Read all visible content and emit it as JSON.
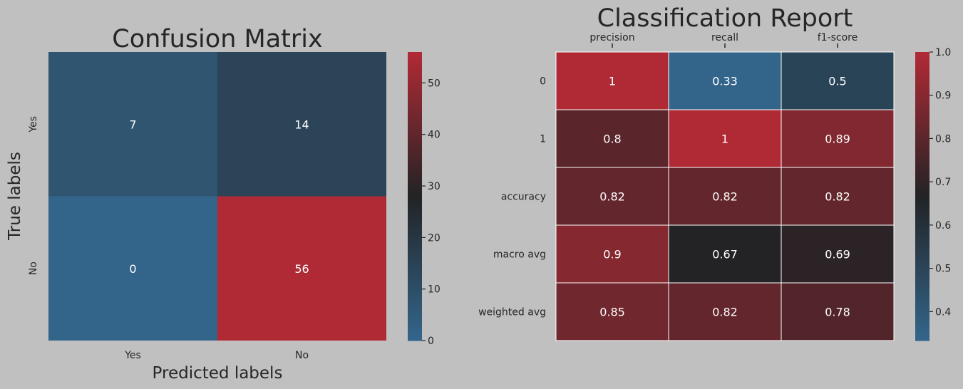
{
  "chart_data": [
    {
      "type": "heatmap",
      "title": "Confusion Matrix",
      "xlabel": "Predicted labels",
      "ylabel": "True labels",
      "x_categories": [
        "Yes",
        "No"
      ],
      "y_categories": [
        "Yes",
        "No"
      ],
      "values": [
        [
          7,
          14
        ],
        [
          0,
          56
        ]
      ],
      "cell_labels": [
        [
          "7",
          "14"
        ],
        [
          "0",
          "56"
        ]
      ],
      "value_range": [
        0,
        56
      ],
      "colorbar_ticks": [
        0,
        10,
        20,
        30,
        40,
        50
      ],
      "colorbar_tick_labels": [
        "0",
        "10",
        "20",
        "30",
        "40",
        "50"
      ],
      "grid": false
    },
    {
      "type": "heatmap",
      "title": "Classification Report",
      "xlabel": "",
      "ylabel": "",
      "x_categories": [
        "precision",
        "recall",
        "f1-score"
      ],
      "y_categories": [
        "0",
        "1",
        "accuracy",
        "macro avg",
        "weighted avg"
      ],
      "values": [
        [
          1,
          0.33,
          0.5
        ],
        [
          0.8,
          1,
          0.89
        ],
        [
          0.82,
          0.82,
          0.82
        ],
        [
          0.9,
          0.67,
          0.69
        ],
        [
          0.85,
          0.82,
          0.78
        ]
      ],
      "cell_labels": [
        [
          "1",
          "0.33",
          "0.5"
        ],
        [
          "0.8",
          "1",
          "0.89"
        ],
        [
          "0.82",
          "0.82",
          "0.82"
        ],
        [
          "0.9",
          "0.67",
          "0.69"
        ],
        [
          "0.85",
          "0.82",
          "0.78"
        ]
      ],
      "value_range": [
        0.333,
        1.0
      ],
      "colorbar_ticks": [
        0.4,
        0.5,
        0.6,
        0.7,
        0.8,
        0.9,
        1.0
      ],
      "colorbar_tick_labels": [
        "0.4",
        "0.5",
        "0.6",
        "0.7",
        "0.8",
        "0.9",
        "1.0"
      ],
      "x_axis_position": "top",
      "grid": true
    }
  ],
  "colors": {
    "background": "#c0c0c0",
    "text": "#262626",
    "low": "#33658a",
    "mid_dark": "#222325",
    "high": "#b02a35",
    "cell_text": "#ffffff",
    "grid_line": "#ffffff"
  }
}
